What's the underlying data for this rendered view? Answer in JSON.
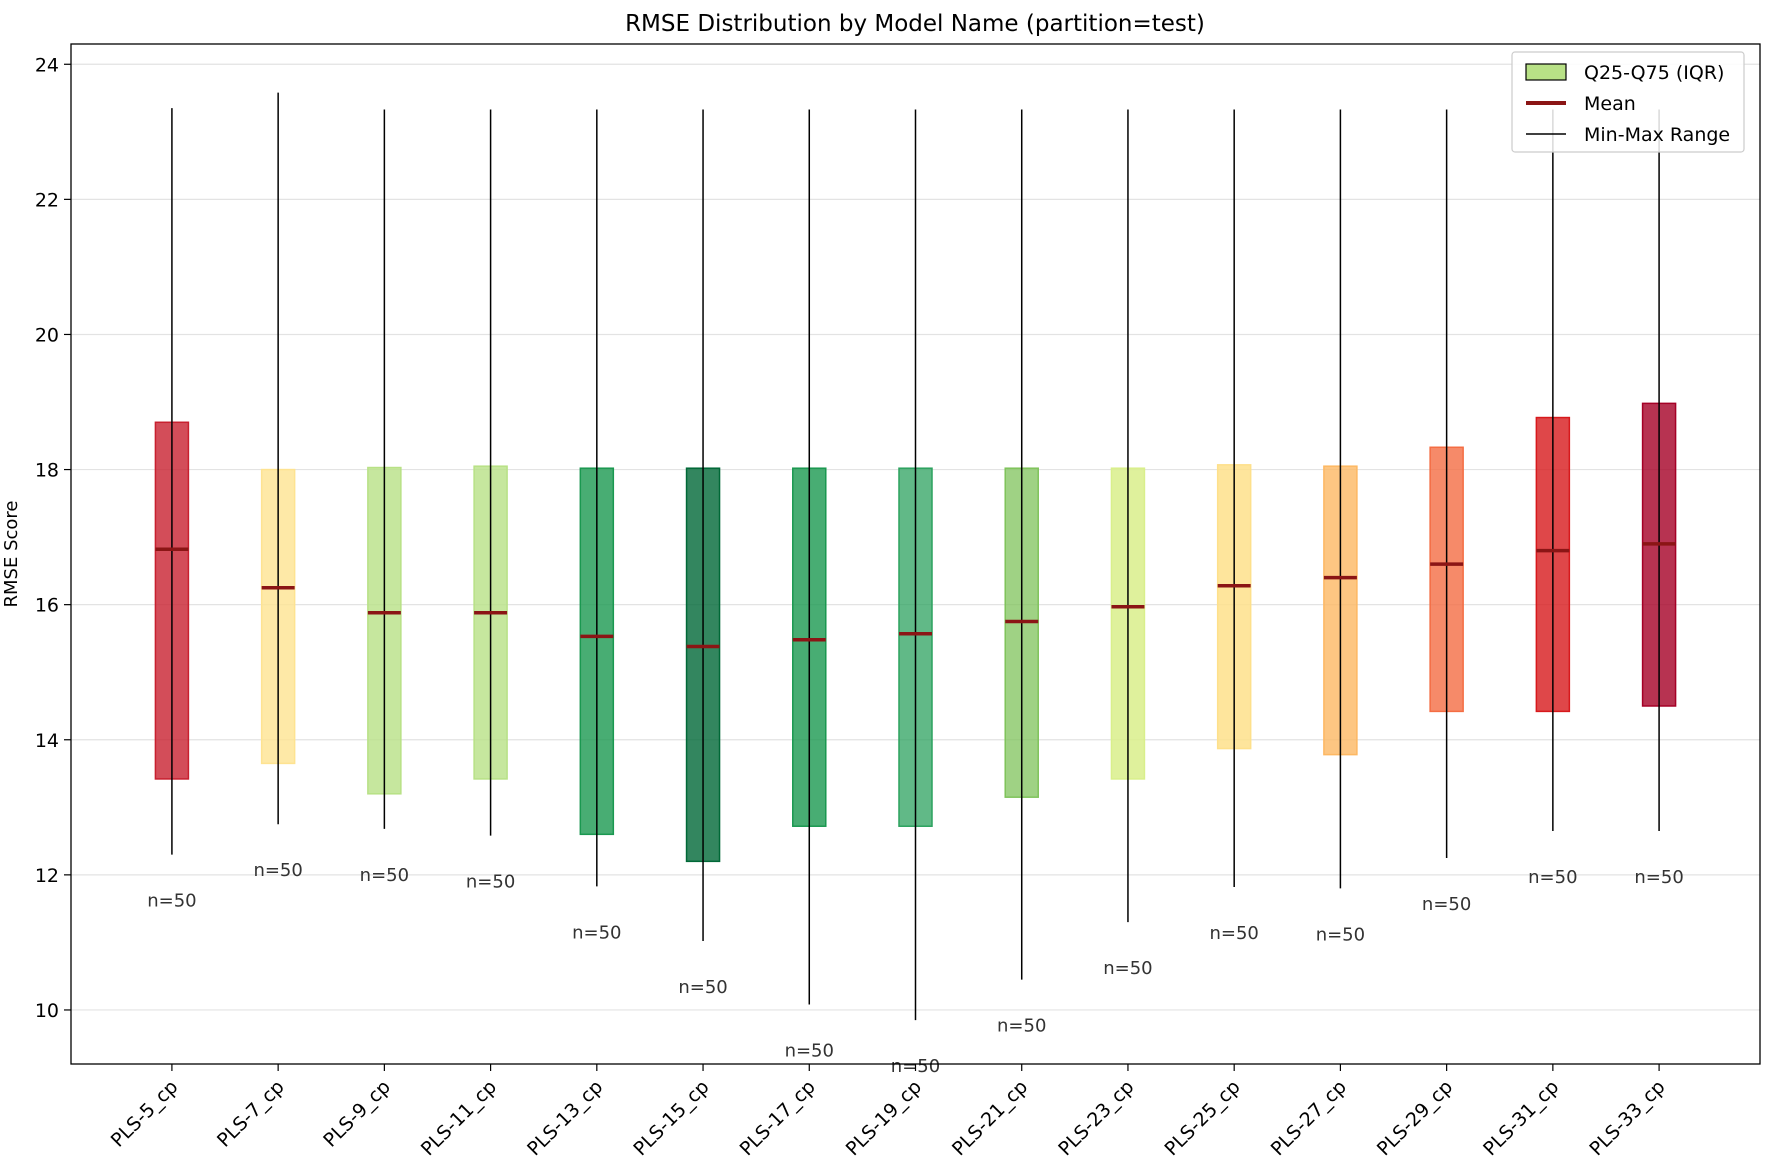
{
  "chart_data": {
    "type": "box",
    "title": "RMSE Distribution by Model Name (partition=test)",
    "xlabel": "",
    "ylabel": "RMSE Score",
    "ylim": [
      9.2,
      24.3
    ],
    "yticks": [
      10,
      12,
      14,
      16,
      18,
      20,
      22,
      24
    ],
    "grid": true,
    "legend": {
      "placement": "top-right",
      "entries": [
        "Q25-Q75 (IQR)",
        "Mean",
        "Min-Max Range"
      ]
    },
    "colors": {
      "mean": "#8b1515",
      "whisker": "#000000",
      "legend_iqr": "#b8e186"
    },
    "categories": [
      "PLS-5_cp",
      "PLS-7_cp",
      "PLS-9_cp",
      "PLS-11_cp",
      "PLS-13_cp",
      "PLS-15_cp",
      "PLS-17_cp",
      "PLS-19_cp",
      "PLS-21_cp",
      "PLS-23_cp",
      "PLS-25_cp",
      "PLS-27_cp",
      "PLS-29_cp",
      "PLS-31_cp",
      "PLS-33_cp"
    ],
    "min": [
      12.3,
      12.75,
      12.68,
      12.58,
      11.83,
      11.02,
      10.08,
      9.85,
      10.45,
      11.3,
      11.82,
      11.8,
      12.25,
      12.65,
      12.65
    ],
    "q25": [
      13.42,
      13.65,
      13.2,
      13.42,
      12.6,
      12.2,
      12.72,
      12.72,
      13.15,
      13.42,
      13.87,
      13.78,
      14.42,
      14.42,
      14.5
    ],
    "mean": [
      16.82,
      16.25,
      15.88,
      15.88,
      15.53,
      15.38,
      15.48,
      15.57,
      15.75,
      15.97,
      16.28,
      16.4,
      16.6,
      16.8,
      16.9
    ],
    "q75": [
      18.7,
      18.0,
      18.03,
      18.05,
      18.02,
      18.02,
      18.02,
      18.02,
      18.02,
      18.02,
      18.07,
      18.05,
      18.33,
      18.77,
      18.98
    ],
    "max": [
      23.35,
      23.58,
      23.33,
      23.33,
      23.33,
      23.33,
      23.33,
      23.33,
      23.33,
      23.33,
      23.33,
      23.33,
      23.33,
      23.33,
      23.33
    ],
    "box_colors": [
      "#c8202f",
      "#fee391",
      "#b8e186",
      "#b8e186",
      "#1a9850",
      "#006837",
      "#1a9850",
      "#2ca25f",
      "#7fc35b",
      "#d9ef8b",
      "#fee08b",
      "#fdb863",
      "#f46d43",
      "#d7191c",
      "#a50026"
    ],
    "box_alpha": [
      0.8,
      0.8,
      0.8,
      0.8,
      0.8,
      0.8,
      0.8,
      0.75,
      0.75,
      0.85,
      0.85,
      0.8,
      0.8,
      0.8,
      0.8
    ],
    "annotations": [
      "n=50",
      "n=50",
      "n=50",
      "n=50",
      "n=50",
      "n=50",
      "n=50",
      "n=50",
      "n=50",
      "n=50",
      "n=50",
      "n=50",
      "n=50",
      "n=50",
      "n=50"
    ]
  }
}
